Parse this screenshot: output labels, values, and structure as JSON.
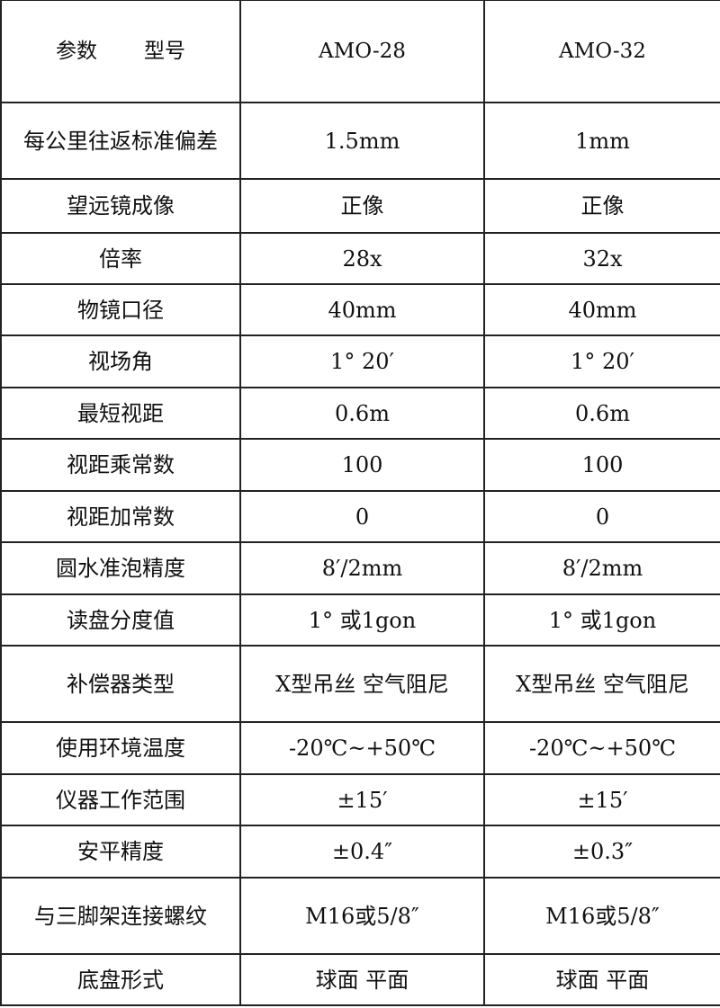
{
  "header": {
    "param_label": "参数",
    "model_label": "型号",
    "models": [
      "AMO-28",
      "AMO-32"
    ]
  },
  "rows": [
    {
      "param": "每公里往返标准偏差",
      "values": [
        "1.5mm",
        "1mm"
      ]
    },
    {
      "param": "望远镜成像",
      "values": [
        "正像",
        "正像"
      ]
    },
    {
      "param": "倍率",
      "values": [
        "28x",
        "32x"
      ]
    },
    {
      "param": "物镜口径",
      "values": [
        "40mm",
        "40mm"
      ]
    },
    {
      "param": "视场角",
      "values": [
        "1° 20′",
        "1° 20′"
      ]
    },
    {
      "param": "最短视距",
      "values": [
        "0.6m",
        "0.6m"
      ]
    },
    {
      "param": "视距乘常数",
      "values": [
        "100",
        "100"
      ]
    },
    {
      "param": "视距加常数",
      "values": [
        "0",
        "0"
      ]
    },
    {
      "param": "圆水准泡精度",
      "values": [
        "8′/2mm",
        "8′/2mm"
      ]
    },
    {
      "param": "读盘分度值",
      "values": [
        "1° 或1gon",
        "1° 或1gon"
      ]
    },
    {
      "param": "补偿器类型",
      "values": [
        "X型吊丝 空气阻尼",
        "X型吊丝 空气阻尼"
      ]
    },
    {
      "param": "使用环境温度",
      "values": [
        "-20℃~+50℃",
        "-20℃~+50℃"
      ]
    },
    {
      "param": "仪器工作范围",
      "values": [
        "±15′",
        "±15′"
      ]
    },
    {
      "param": "安平精度",
      "values": [
        "±0.4″",
        "±0.3″"
      ]
    },
    {
      "param": "与三脚架连接螺纹",
      "values": [
        "M16或5/8″",
        "M16或5/8″"
      ]
    },
    {
      "param": "底盘形式",
      "values": [
        "球面 平面",
        "球面 平面"
      ]
    }
  ]
}
